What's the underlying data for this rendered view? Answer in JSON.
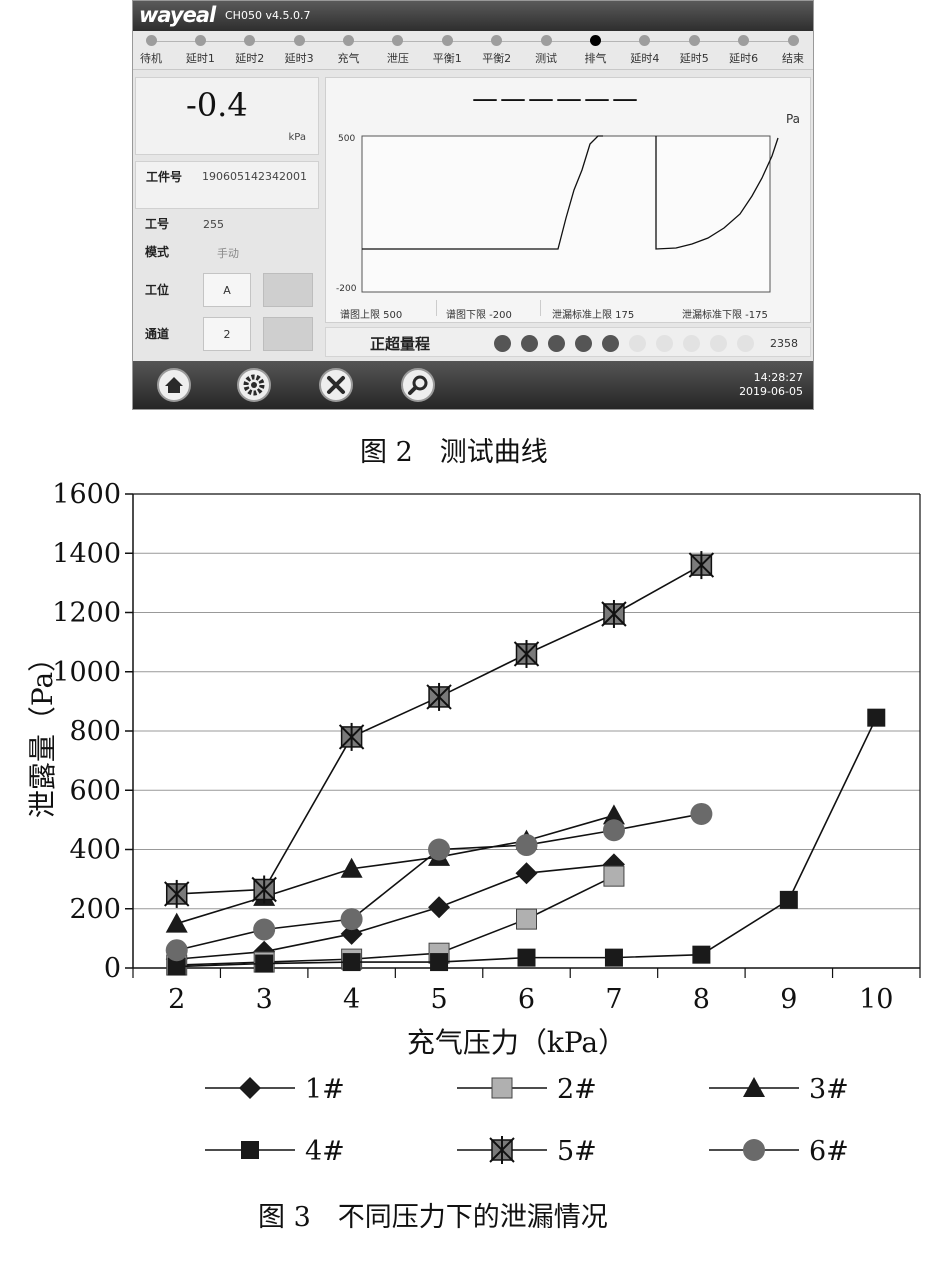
{
  "screen": {
    "brand": "wayeal",
    "version": "CH050 v4.5.0.7",
    "steps": [
      "待机",
      "延时1",
      "延时2",
      "延时3",
      "充气",
      "泄压",
      "平衡1",
      "平衡2",
      "测试",
      "排气",
      "延时4",
      "延时5",
      "延时6",
      "结束"
    ],
    "active_step": "排气",
    "pressure_value": "-0.4",
    "pressure_unit": "kPa",
    "workpiece_label": "工件号",
    "workpiece_value": "190605142342001",
    "job_label": "工号",
    "job_value": "255",
    "mode_label": "模式",
    "mode_value": "手动",
    "station_label": "工位",
    "station_value": "A",
    "channel_label": "通道",
    "channel_value": "2",
    "plot_unit": "Pa",
    "plot_ymax": "500",
    "plot_ymin": "-200",
    "plot_dashes": "——————",
    "limit_upper": "谱图上限 500",
    "limit_lower": "谱图下限 -200",
    "leak_upper": "泄漏标准上限 175",
    "leak_lower": "泄漏标准下限 -175",
    "status_text": "正超量程",
    "status_active_count": 5,
    "status_total_count": 10,
    "counter": "2358",
    "time": "14:28:27",
    "date": "2019-06-05",
    "nav_icons": [
      "home-icon",
      "settings-icon",
      "tools-icon",
      "search-icon"
    ]
  },
  "captions": {
    "fig2": "图 2　测试曲线",
    "fig3": "图 3　不同压力下的泄漏情况"
  },
  "chart_data": {
    "type": "line",
    "xlabel": "充气压力（kPa）",
    "ylabel": "泄露量（Pa）",
    "xlim": [
      1.5,
      10.5
    ],
    "ylim": [
      0,
      1600
    ],
    "xticks": [
      2,
      3,
      4,
      5,
      6,
      7,
      8,
      9,
      10
    ],
    "yticks": [
      0,
      200,
      400,
      600,
      800,
      1000,
      1200,
      1400,
      1600
    ],
    "grid": "horizontal",
    "legend_position": "bottom",
    "series": [
      {
        "name": "1#",
        "marker": "diamond",
        "color": "#1a1a1a",
        "x": [
          2,
          3,
          4,
          5,
          6,
          7
        ],
        "y": [
          30,
          55,
          115,
          205,
          320,
          350
        ]
      },
      {
        "name": "2#",
        "marker": "square-light",
        "color": "#b0b0b0",
        "x": [
          2,
          3,
          4,
          5,
          6,
          7
        ],
        "y": [
          10,
          20,
          30,
          50,
          165,
          310
        ]
      },
      {
        "name": "3#",
        "marker": "triangle",
        "color": "#1a1a1a",
        "x": [
          2,
          3,
          4,
          5,
          6,
          7
        ],
        "y": [
          150,
          240,
          335,
          375,
          430,
          515
        ]
      },
      {
        "name": "4#",
        "marker": "square",
        "color": "#1a1a1a",
        "x": [
          2,
          3,
          4,
          5,
          6,
          7,
          8,
          9,
          10
        ],
        "y": [
          5,
          15,
          20,
          20,
          35,
          35,
          45,
          230,
          845
        ]
      },
      {
        "name": "5#",
        "marker": "star",
        "color": "#7a7a7a",
        "x": [
          2,
          3,
          4,
          5,
          6,
          7,
          8
        ],
        "y": [
          250,
          265,
          780,
          915,
          1060,
          1195,
          1360
        ]
      },
      {
        "name": "6#",
        "marker": "circle",
        "color": "#6a6a6a",
        "x": [
          2,
          3,
          4,
          5,
          6,
          7,
          8
        ],
        "y": [
          60,
          130,
          165,
          400,
          415,
          465,
          520
        ]
      }
    ]
  }
}
